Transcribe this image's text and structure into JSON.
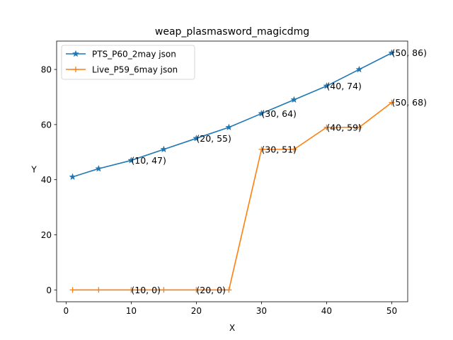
{
  "chart_data": {
    "type": "line",
    "title": "weap_plasmasword_magicdmg",
    "xlabel": "X",
    "ylabel": "Y",
    "xlim": [
      -1.45,
      52.45
    ],
    "ylim": [
      -4.3,
      90.3
    ],
    "xticks": [
      0,
      10,
      20,
      30,
      40,
      50
    ],
    "yticks": [
      0,
      20,
      40,
      60,
      80
    ],
    "grid": false,
    "legend_position": "top-left",
    "series": [
      {
        "name": "PTS_P60_2may json",
        "color": "#1f77b4",
        "marker": "star",
        "x": [
          1,
          5,
          10,
          15,
          20,
          25,
          30,
          35,
          40,
          45,
          50
        ],
        "y": [
          41,
          44,
          47,
          51,
          55,
          59,
          64,
          69,
          74,
          80,
          86
        ]
      },
      {
        "name": "Live_P59_6may json",
        "color": "#ff7f0e",
        "marker": "plus",
        "x": [
          1,
          5,
          10,
          15,
          20,
          25,
          30,
          35,
          40,
          45,
          50
        ],
        "y": [
          0,
          0,
          0,
          0,
          0,
          0,
          51,
          51,
          59,
          59,
          68
        ]
      }
    ],
    "annotations": [
      {
        "text": "(10, 47)",
        "x": 10,
        "y": 47
      },
      {
        "text": "(20, 55)",
        "x": 20,
        "y": 55
      },
      {
        "text": "(30, 64)",
        "x": 30,
        "y": 64
      },
      {
        "text": "(40, 74)",
        "x": 40,
        "y": 74
      },
      {
        "text": "(50, 86)",
        "x": 50,
        "y": 86
      },
      {
        "text": "(10, 0)",
        "x": 10,
        "y": 0
      },
      {
        "text": "(20, 0)",
        "x": 20,
        "y": 0
      },
      {
        "text": "(30, 51)",
        "x": 30,
        "y": 51
      },
      {
        "text": "(40, 59)",
        "x": 40,
        "y": 59
      },
      {
        "text": "(50, 68)",
        "x": 50,
        "y": 68
      }
    ]
  }
}
